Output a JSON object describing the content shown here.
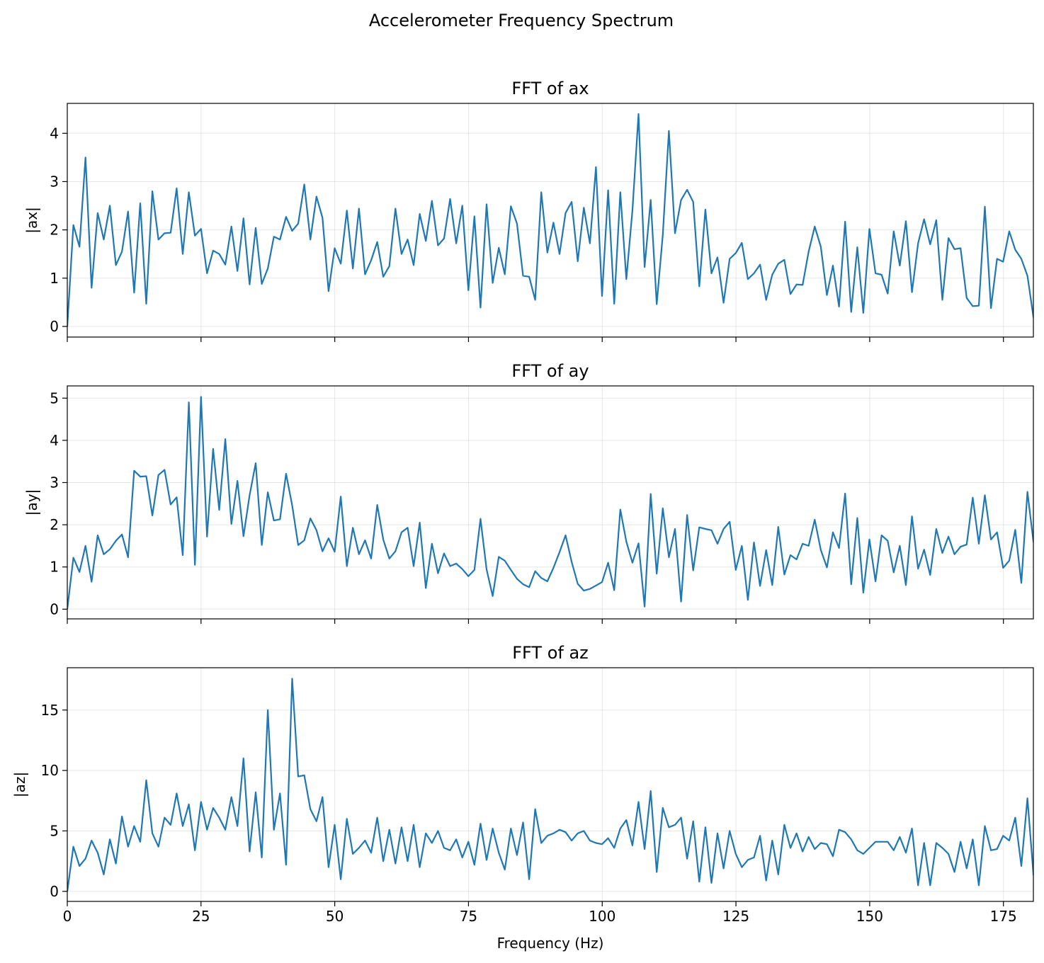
{
  "chart_data": {
    "type": "line",
    "title": "Accelerometer Frequency Spectrum",
    "xlabel": "Frequency (Hz)",
    "xlim": [
      0,
      180.6
    ],
    "x_step_hz": 1.136,
    "xticks": [
      0,
      25,
      50,
      75,
      100,
      125,
      150,
      175
    ],
    "line_color": "#1f77b4",
    "grid": true,
    "panels": [
      {
        "title": "FFT of ax",
        "ylabel": "|ax|",
        "ylim": [
          -0.22,
          4.62
        ],
        "yticks": [
          0,
          1,
          2,
          3,
          4
        ],
        "values": [
          0,
          2.1,
          1.65,
          3.5,
          0.8,
          2.35,
          1.8,
          2.5,
          1.27,
          1.55,
          2.38,
          0.7,
          2.55,
          0.47,
          2.8,
          1.8,
          1.93,
          1.94,
          2.86,
          1.5,
          2.78,
          1.88,
          2.02,
          1.1,
          1.57,
          1.5,
          1.28,
          2.07,
          1.15,
          2.24,
          0.87,
          2.04,
          0.88,
          1.2,
          1.86,
          1.8,
          2.27,
          1.98,
          2.13,
          2.94,
          1.8,
          2.69,
          2.25,
          0.73,
          1.62,
          1.3,
          2.4,
          1.2,
          2.44,
          1.08,
          1.37,
          1.75,
          1.03,
          1.25,
          2.44,
          1.5,
          1.8,
          1.27,
          2.33,
          1.77,
          2.6,
          1.68,
          1.82,
          2.64,
          1.72,
          2.5,
          0.75,
          2.28,
          0.39,
          2.53,
          0.9,
          1.63,
          1.08,
          2.49,
          2.13,
          1.05,
          1.03,
          0.55,
          2.78,
          1.53,
          2.15,
          1.5,
          2.35,
          2.58,
          1.35,
          2.46,
          1.72,
          3.3,
          0.63,
          2.82,
          0.47,
          2.78,
          0.98,
          2.4,
          4.4,
          1.23,
          2.62,
          0.46,
          1.9,
          4.05,
          1.93,
          2.62,
          2.83,
          2.58,
          0.83,
          2.42,
          1.1,
          1.43,
          0.49,
          1.4,
          1.52,
          1.73,
          0.98,
          1.1,
          1.28,
          0.55,
          1.07,
          1.3,
          1.38,
          0.67,
          0.87,
          0.86,
          1.55,
          2.07,
          1.65,
          0.65,
          1.26,
          0.41,
          2.17,
          0.3,
          1.64,
          0.28,
          2.02,
          1.1,
          1.07,
          0.68,
          1.97,
          1.26,
          2.18,
          0.71,
          1.72,
          2.22,
          1.7,
          2.2,
          0.55,
          1.83,
          1.6,
          1.62,
          0.59,
          0.42,
          0.43,
          2.48,
          0.38,
          1.4,
          1.34,
          1.97,
          1.59,
          1.4,
          1.05,
          0.18
        ]
      },
      {
        "title": "FFT of ay",
        "ylabel": "|ay|",
        "ylim": [
          -0.23,
          5.29
        ],
        "yticks": [
          0,
          1,
          2,
          3,
          4,
          5
        ],
        "values": [
          0,
          1.22,
          0.88,
          1.5,
          0.65,
          1.75,
          1.3,
          1.42,
          1.62,
          1.77,
          1.23,
          3.28,
          3.14,
          3.15,
          2.22,
          3.18,
          3.3,
          2.48,
          2.65,
          1.28,
          4.9,
          1.05,
          5.03,
          1.72,
          3.8,
          2.35,
          4.03,
          2.02,
          3.04,
          1.73,
          2.7,
          3.46,
          1.52,
          2.77,
          2.1,
          2.13,
          3.21,
          2.46,
          1.52,
          1.63,
          2.15,
          1.87,
          1.37,
          1.68,
          1.36,
          2.67,
          1.02,
          1.93,
          1.3,
          1.63,
          1.2,
          2.47,
          1.65,
          1.2,
          1.37,
          1.82,
          1.93,
          1.02,
          2.05,
          0.5,
          1.55,
          0.85,
          1.32,
          1.02,
          1.08,
          0.95,
          0.78,
          0.93,
          2.14,
          0.94,
          0.31,
          1.24,
          1.15,
          0.93,
          0.72,
          0.59,
          0.52,
          0.9,
          0.74,
          0.66,
          0.98,
          1.35,
          1.75,
          1.12,
          0.6,
          0.44,
          0.48,
          0.56,
          0.64,
          1.1,
          0.45,
          2.36,
          1.6,
          1.1,
          1.56,
          0.06,
          2.73,
          0.84,
          2.39,
          1.23,
          1.9,
          0.18,
          2.23,
          0.92,
          1.94,
          1.9,
          1.87,
          1.55,
          1.9,
          2.07,
          0.93,
          1.5,
          0.22,
          1.58,
          0.55,
          1.4,
          0.57,
          1.95,
          0.82,
          1.28,
          1.18,
          1.55,
          1.5,
          2.12,
          1.4,
          0.99,
          1.82,
          1.45,
          2.74,
          0.59,
          2.16,
          0.39,
          1.65,
          0.66,
          1.75,
          1.62,
          0.87,
          1.5,
          0.57,
          2.2,
          0.96,
          1.41,
          0.81,
          1.9,
          1.33,
          1.72,
          1.3,
          1.48,
          1.53,
          2.64,
          1.55,
          2.7,
          1.65,
          1.82,
          0.98,
          1.15,
          1.88,
          0.62,
          2.78,
          1.58
        ]
      },
      {
        "title": "FFT of az",
        "ylabel": "|az|",
        "ylim": [
          -0.83,
          18.5
        ],
        "yticks": [
          0,
          5,
          10,
          15
        ],
        "values": [
          0,
          3.7,
          2.1,
          2.7,
          4.2,
          3.2,
          1.4,
          4.3,
          2.3,
          6.2,
          3.7,
          5.4,
          4.1,
          9.2,
          4.8,
          3.7,
          6.1,
          5.5,
          8.1,
          5.4,
          7.2,
          3.4,
          7.4,
          5.1,
          6.9,
          6.1,
          5.1,
          7.8,
          5.4,
          11.0,
          3.3,
          8.2,
          2.8,
          15.0,
          5.1,
          8.1,
          2.2,
          17.6,
          9.5,
          9.6,
          6.8,
          5.8,
          7.8,
          2.0,
          5.5,
          1.0,
          6.0,
          3.1,
          3.6,
          4.2,
          3.2,
          6.1,
          2.5,
          5.1,
          2.3,
          5.3,
          2.5,
          5.5,
          2.0,
          4.8,
          4.0,
          5.0,
          3.6,
          3.4,
          4.3,
          2.8,
          4.1,
          2.2,
          5.6,
          2.6,
          5.2,
          3.2,
          1.8,
          5.2,
          3.0,
          5.7,
          1.0,
          6.8,
          4.0,
          4.6,
          4.8,
          5.1,
          4.9,
          4.2,
          4.8,
          5.0,
          4.2,
          4.0,
          3.9,
          4.4,
          3.6,
          5.2,
          5.9,
          3.8,
          7.4,
          3.5,
          8.3,
          1.6,
          6.9,
          5.3,
          5.5,
          6.1,
          2.7,
          5.8,
          0.8,
          5.3,
          0.7,
          4.8,
          1.9,
          5.0,
          3.1,
          2.0,
          2.6,
          2.8,
          4.6,
          0.9,
          4.2,
          1.4,
          5.5,
          3.6,
          4.8,
          3.3,
          4.5,
          3.5,
          4.0,
          3.9,
          2.9,
          5.1,
          4.9,
          4.3,
          3.4,
          3.1,
          3.6,
          4.1,
          4.1,
          4.1,
          3.4,
          4.5,
          3.2,
          5.2,
          0.5,
          4.0,
          0.5,
          4.0,
          3.6,
          3.1,
          1.6,
          4.1,
          1.9,
          4.3,
          0.5,
          5.4,
          3.4,
          3.5,
          4.6,
          4.2,
          6.1,
          2.1,
          7.7,
          1.3
        ]
      }
    ]
  }
}
